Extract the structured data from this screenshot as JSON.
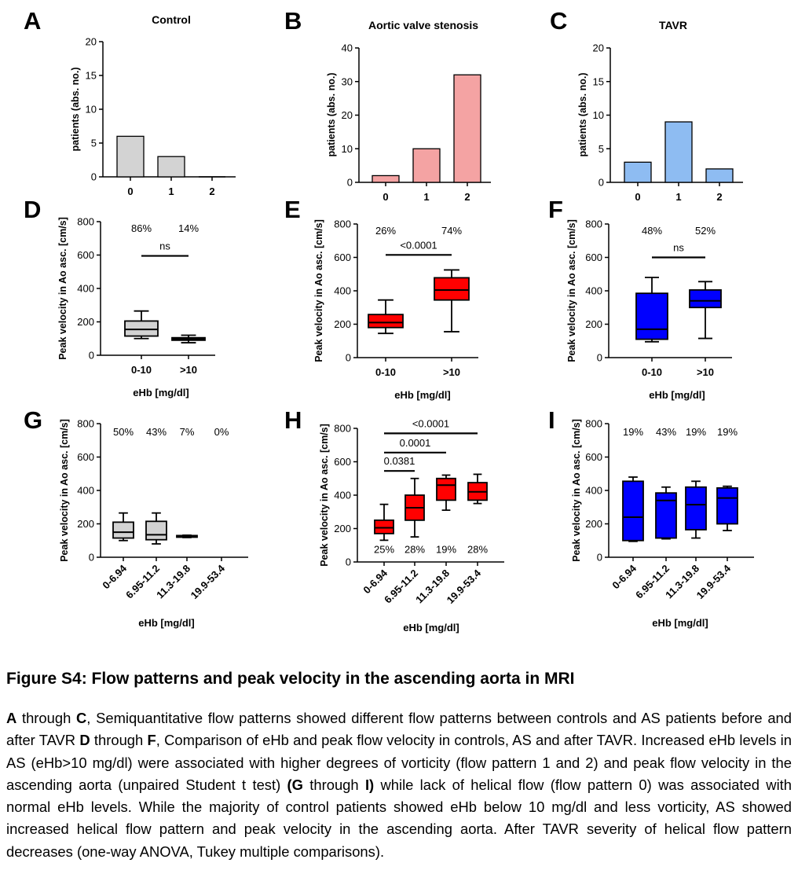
{
  "chart_data": [
    {
      "panel": "A",
      "type": "bar",
      "title": "Control",
      "ylabel": "patients (abs. no.)",
      "xlabel": "",
      "categories": [
        "0",
        "1",
        "2"
      ],
      "values": [
        6,
        3,
        0
      ],
      "ylim": [
        0,
        20
      ],
      "yticks": [
        0,
        5,
        10,
        15,
        20
      ],
      "color": "#d3d3d3"
    },
    {
      "panel": "B",
      "type": "bar",
      "title": "Aortic valve stenosis",
      "ylabel": "patients (abs. no.)",
      "xlabel": "",
      "categories": [
        "0",
        "1",
        "2"
      ],
      "values": [
        2,
        10,
        32
      ],
      "ylim": [
        0,
        40
      ],
      "yticks": [
        0,
        10,
        20,
        30,
        40
      ],
      "color": "#f4a3a3"
    },
    {
      "panel": "C",
      "type": "bar",
      "title": "TAVR",
      "ylabel": "patients (abs. no.)",
      "xlabel": "",
      "categories": [
        "0",
        "1",
        "2"
      ],
      "values": [
        3,
        9,
        2
      ],
      "ylim": [
        0,
        20
      ],
      "yticks": [
        0,
        5,
        10,
        15,
        20
      ],
      "color": "#8ebcf2"
    },
    {
      "panel": "D",
      "type": "box",
      "title": "",
      "ylabel": "Peak velocity in Ao asc. [cm/s]",
      "xlabel": "eHb [mg/dl]",
      "categories": [
        "0-10",
        ">10"
      ],
      "ylim": [
        0,
        800
      ],
      "yticks": [
        0,
        200,
        400,
        600,
        800
      ],
      "color": "#d3d3d3",
      "boxes": [
        {
          "min": 100,
          "q1": 115,
          "median": 155,
          "q3": 205,
          "max": 265
        },
        {
          "min": 75,
          "q1": 90,
          "median": 97,
          "q3": 105,
          "max": 120
        }
      ],
      "top_labels": [
        "86%",
        "14%"
      ],
      "bottom_labels": [],
      "comparisons": [
        {
          "from": 0,
          "to": 1,
          "y": 595,
          "label": "ns"
        }
      ]
    },
    {
      "panel": "E",
      "type": "box",
      "title": "",
      "ylabel": "Peak velocity in Ao asc. [cm/s]",
      "xlabel": "eHb [mg/dl]",
      "categories": [
        "0-10",
        ">10"
      ],
      "ylim": [
        0,
        800
      ],
      "yticks": [
        0,
        200,
        400,
        600,
        800
      ],
      "color": "#ff0000",
      "boxes": [
        {
          "min": 145,
          "q1": 180,
          "median": 210,
          "q3": 258,
          "max": 345
        },
        {
          "min": 155,
          "q1": 345,
          "median": 405,
          "q3": 478,
          "max": 525
        }
      ],
      "top_labels": [
        "26%",
        "74%"
      ],
      "bottom_labels": [],
      "comparisons": [
        {
          "from": 0,
          "to": 1,
          "y": 615,
          "label": "<0.0001"
        }
      ]
    },
    {
      "panel": "F",
      "type": "box",
      "title": "",
      "ylabel": "Peak velocity in Ao asc. [cm/s]",
      "xlabel": "eHb [mg/dl]",
      "categories": [
        "0-10",
        ">10"
      ],
      "ylim": [
        0,
        800
      ],
      "yticks": [
        0,
        200,
        400,
        600,
        800
      ],
      "color": "#0000ff",
      "boxes": [
        {
          "min": 95,
          "q1": 110,
          "median": 170,
          "q3": 385,
          "max": 480
        },
        {
          "min": 115,
          "q1": 300,
          "median": 340,
          "q3": 405,
          "max": 455
        }
      ],
      "top_labels": [
        "48%",
        "52%"
      ],
      "bottom_labels": [],
      "comparisons": [
        {
          "from": 0,
          "to": 1,
          "y": 600,
          "label": "ns"
        }
      ]
    },
    {
      "panel": "G",
      "type": "box",
      "title": "",
      "ylabel": "Peak velocity in Ao asc. [cm/s]",
      "xlabel": "eHb [mg/dl]",
      "categories": [
        "0-6.94",
        "6.95-11.2",
        "11.3-19.8",
        "19.9-53.4"
      ],
      "ylim": [
        0,
        800
      ],
      "yticks": [
        0,
        200,
        400,
        600,
        800
      ],
      "color": "#d3d3d3",
      "boxes": [
        {
          "min": 100,
          "q1": 115,
          "median": 150,
          "q3": 210,
          "max": 265
        },
        {
          "min": 80,
          "q1": 105,
          "median": 135,
          "q3": 215,
          "max": 265
        },
        {
          "min": 118,
          "q1": 120,
          "median": 125,
          "q3": 130,
          "max": 132
        },
        null
      ],
      "top_labels": [
        "50%",
        "43%",
        "7%",
        "0%"
      ],
      "bottom_labels": [],
      "comparisons": []
    },
    {
      "panel": "H",
      "type": "box",
      "title": "",
      "ylabel": "Peak velocity in Ao asc. [cm/s]",
      "xlabel": "eHb [mg/dl]",
      "categories": [
        "0-6.94",
        "6.95-11.2",
        "11.3-19.8",
        "19.9-53.4"
      ],
      "ylim": [
        0,
        800
      ],
      "yticks": [
        0,
        200,
        400,
        600,
        800
      ],
      "color": "#ff0000",
      "boxes": [
        {
          "min": 130,
          "q1": 170,
          "median": 205,
          "q3": 250,
          "max": 345
        },
        {
          "min": 150,
          "q1": 250,
          "median": 325,
          "q3": 400,
          "max": 500
        },
        {
          "min": 310,
          "q1": 370,
          "median": 460,
          "q3": 500,
          "max": 520
        },
        {
          "min": 350,
          "q1": 370,
          "median": 420,
          "q3": 475,
          "max": 525
        }
      ],
      "top_labels": [],
      "bottom_labels": [
        "25%",
        "28%",
        "19%",
        "28%"
      ],
      "comparisons": [
        {
          "from": 0,
          "to": 1,
          "y": 545,
          "label": "0.0381"
        },
        {
          "from": 0,
          "to": 2,
          "y": 655,
          "label": "0.0001"
        },
        {
          "from": 0,
          "to": 3,
          "y": 770,
          "label": "<0.0001"
        }
      ]
    },
    {
      "panel": "I",
      "type": "box",
      "title": "",
      "ylabel": "Peak velocity in Ao asc. [cm/s]",
      "xlabel": "eHb [mg/dl]",
      "categories": [
        "0-6.94",
        "6.95-11.2",
        "11.3-19.8",
        "19.9-53.4"
      ],
      "ylim": [
        0,
        800
      ],
      "yticks": [
        0,
        200,
        400,
        600,
        800
      ],
      "color": "#0000ff",
      "boxes": [
        {
          "min": 95,
          "q1": 100,
          "median": 240,
          "q3": 455,
          "max": 480
        },
        {
          "min": 110,
          "q1": 115,
          "median": 340,
          "q3": 385,
          "max": 420
        },
        {
          "min": 115,
          "q1": 165,
          "median": 315,
          "q3": 420,
          "max": 455
        },
        {
          "min": 160,
          "q1": 200,
          "median": 355,
          "q3": 415,
          "max": 425
        }
      ],
      "top_labels": [
        "19%",
        "43%",
        "19%",
        "19%"
      ],
      "bottom_labels": [],
      "comparisons": []
    }
  ],
  "caption": {
    "title": "Figure S4: Flow patterns and peak velocity in the ascending aorta in MRI",
    "segments": [
      {
        "t": "A",
        "b": true
      },
      {
        "t": " through ",
        "b": false
      },
      {
        "t": "C",
        "b": true
      },
      {
        "t": ", Semiquantitative flow patterns showed different flow patterns between controls and AS patients before and after TAVR ",
        "b": false
      },
      {
        "t": "D",
        "b": true
      },
      {
        "t": " through ",
        "b": false
      },
      {
        "t": "F",
        "b": true
      },
      {
        "t": ", Comparison of eHb and peak flow velocity in controls, AS and after TAVR. Increased eHb levels in AS (eHb>10 mg/dl) were associated with higher degrees of vorticity (flow pattern 1 and 2) and peak flow velocity in the ascending aorta (unpaired Student t test) ",
        "b": false
      },
      {
        "t": "(G",
        "b": true
      },
      {
        "t": " through ",
        "b": false
      },
      {
        "t": "I)",
        "b": true
      },
      {
        "t": " while lack of helical flow (flow pattern 0) was associated with normal eHb levels. While the majority of control patients showed eHb below 10 mg/dl and less vorticity, AS showed increased helical flow pattern and peak velocity in the ascending aorta. After TAVR severity of helical flow pattern decreases (one-way ANOVA, Tukey multiple comparisons).",
        "b": false
      }
    ]
  }
}
